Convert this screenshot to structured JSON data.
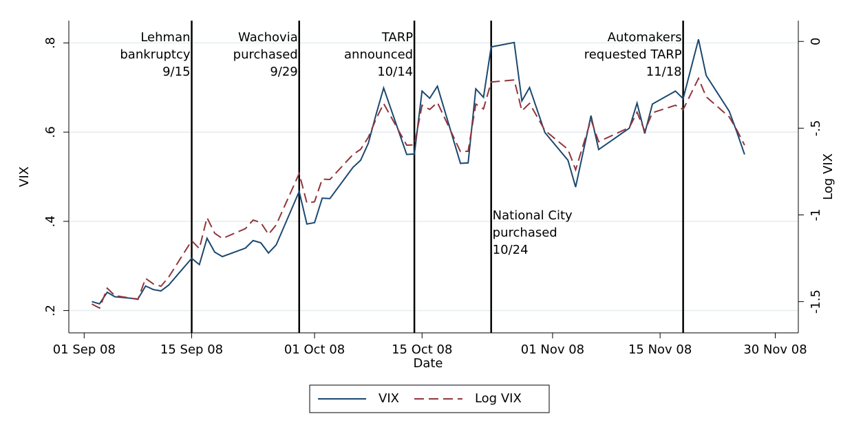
{
  "chart_data": {
    "type": "line",
    "x_label": "Date",
    "y_label": "VIX",
    "y2_label": "Log VIX",
    "grid": true,
    "legend": "bottom",
    "xlim": [
      "2008-08-30",
      "2008-12-03"
    ],
    "xticks": [
      {
        "value": "2008-09-01",
        "label": "01 Sep 08"
      },
      {
        "value": "2008-09-15",
        "label": "15 Sep 08"
      },
      {
        "value": "2008-10-01",
        "label": "01 Oct 08"
      },
      {
        "value": "2008-10-15",
        "label": "15 Oct 08"
      },
      {
        "value": "2008-11-01",
        "label": "01 Nov 08"
      },
      {
        "value": "2008-11-15",
        "label": "15 Nov 08"
      },
      {
        "value": "2008-11-30",
        "label": "30 Nov 08"
      }
    ],
    "ylim": [
      0.15,
      0.85
    ],
    "yticks": [
      {
        "value": 0.2,
        "label": ".2"
      },
      {
        "value": 0.4,
        "label": ".4"
      },
      {
        "value": 0.6,
        "label": ".6"
      },
      {
        "value": 0.8,
        "label": ".8"
      }
    ],
    "y2lim": [
      -1.68,
      0.12
    ],
    "y2ticks": [
      -1.5,
      -1,
      {
        "value": -0.5,
        "label": "-.5"
      },
      0
    ],
    "x": [
      "2008-09-02",
      "2008-09-03",
      "2008-09-04",
      "2008-09-05",
      "2008-09-08",
      "2008-09-09",
      "2008-09-10",
      "2008-09-11",
      "2008-09-12",
      "2008-09-15",
      "2008-09-16",
      "2008-09-17",
      "2008-09-18",
      "2008-09-19",
      "2008-09-22",
      "2008-09-23",
      "2008-09-24",
      "2008-09-25",
      "2008-09-26",
      "2008-09-29",
      "2008-09-30",
      "2008-10-01",
      "2008-10-02",
      "2008-10-03",
      "2008-10-06",
      "2008-10-07",
      "2008-10-08",
      "2008-10-09",
      "2008-10-10",
      "2008-10-13",
      "2008-10-14",
      "2008-10-15",
      "2008-10-16",
      "2008-10-17",
      "2008-10-20",
      "2008-10-21",
      "2008-10-22",
      "2008-10-23",
      "2008-10-24",
      "2008-10-27",
      "2008-10-28",
      "2008-10-29",
      "2008-10-31",
      "2008-11-03",
      "2008-11-04",
      "2008-11-06",
      "2008-11-07",
      "2008-11-11",
      "2008-11-12",
      "2008-11-13",
      "2008-11-14",
      "2008-11-17",
      "2008-11-18",
      "2008-11-20",
      "2008-11-21",
      "2008-11-24",
      "2008-11-25",
      "2008-11-26"
    ],
    "series": [
      {
        "name": "VIX",
        "color": "#1a476f",
        "dash": false,
        "axis": "y",
        "values": [
          0.22,
          0.215,
          0.241,
          0.231,
          0.226,
          0.255,
          0.247,
          0.244,
          0.257,
          0.317,
          0.303,
          0.362,
          0.331,
          0.321,
          0.34,
          0.357,
          0.352,
          0.329,
          0.347,
          0.467,
          0.394,
          0.397,
          0.452,
          0.451,
          0.521,
          0.537,
          0.575,
          0.639,
          0.699,
          0.55,
          0.551,
          0.692,
          0.676,
          0.703,
          0.53,
          0.531,
          0.697,
          0.678,
          0.791,
          0.801,
          0.67,
          0.7,
          0.599,
          0.537,
          0.477,
          0.637,
          0.561,
          0.609,
          0.665,
          0.597,
          0.663,
          0.692,
          0.675,
          0.808,
          0.727,
          0.647,
          0.6,
          0.55
        ]
      },
      {
        "name": "Log VIX",
        "color": "#90353b",
        "dash": true,
        "axis": "y2",
        "values": [
          -1.514,
          -1.537,
          -1.423,
          -1.465,
          -1.487,
          -1.366,
          -1.398,
          -1.411,
          -1.359,
          -1.149,
          -1.194,
          -1.016,
          -1.106,
          -1.136,
          -1.079,
          -1.03,
          -1.044,
          -1.112,
          -1.058,
          -0.761,
          -0.931,
          -0.924,
          -0.794,
          -0.796,
          -0.652,
          -0.622,
          -0.553,
          -0.448,
          -0.358,
          -0.598,
          -0.596,
          -0.368,
          -0.392,
          -0.352,
          -0.635,
          -0.633,
          -0.361,
          -0.389,
          -0.234,
          -0.222,
          -0.4,
          -0.357,
          -0.513,
          -0.622,
          -0.74,
          -0.451,
          -0.578,
          -0.496,
          -0.408,
          -0.516,
          -0.411,
          -0.368,
          -0.393,
          -0.213,
          -0.319,
          -0.435,
          -0.511,
          -0.598
        ]
      }
    ],
    "events": [
      {
        "x": "2008-09-15",
        "lines": [
          "Lehman",
          "bankruptcy",
          "9/15"
        ]
      },
      {
        "x": "2008-09-29",
        "lines": [
          "Wachovia",
          "purchased",
          "9/29"
        ]
      },
      {
        "x": "2008-10-14",
        "lines": [
          "TARP",
          "announced",
          "10/14"
        ]
      },
      {
        "x": "2008-10-24",
        "lines": [
          "National City",
          "purchased",
          "10/24"
        ]
      },
      {
        "x": "2008-11-18",
        "lines": [
          "Automakers",
          "requested TARP",
          "11/18"
        ]
      }
    ]
  }
}
